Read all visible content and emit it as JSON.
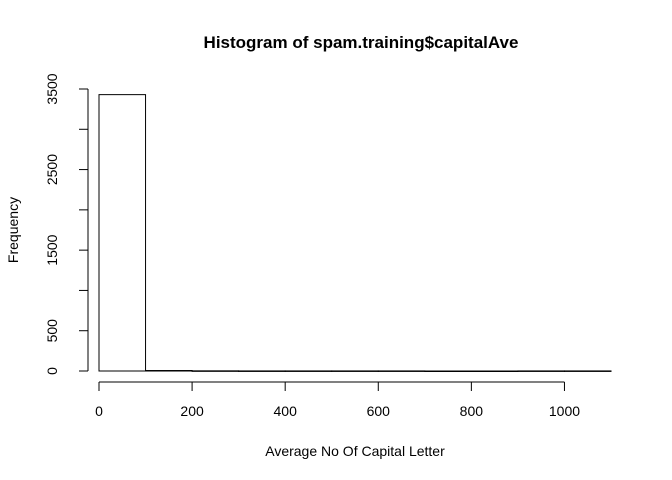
{
  "chart_data": {
    "type": "bar",
    "title": "Histogram of spam.training$capitalAve",
    "xlabel": "Average No Of Capital Letter",
    "ylabel": "Frequency",
    "bins": [
      {
        "x0": 0,
        "x1": 100,
        "count": 3430
      },
      {
        "x0": 100,
        "x1": 200,
        "count": 6
      },
      {
        "x0": 200,
        "x1": 300,
        "count": 2
      },
      {
        "x0": 300,
        "x1": 400,
        "count": 1
      },
      {
        "x0": 400,
        "x1": 500,
        "count": 1
      },
      {
        "x0": 500,
        "x1": 600,
        "count": 1
      },
      {
        "x0": 600,
        "x1": 700,
        "count": 1
      },
      {
        "x0": 700,
        "x1": 800,
        "count": 0
      },
      {
        "x0": 800,
        "x1": 900,
        "count": 0
      },
      {
        "x0": 900,
        "x1": 1000,
        "count": 1
      },
      {
        "x0": 1000,
        "x1": 1100,
        "count": 1
      }
    ],
    "xlim": [
      0,
      1100
    ],
    "ylim": [
      0,
      3500
    ],
    "xticks": [
      0,
      200,
      400,
      600,
      800,
      1000
    ],
    "yticks": [
      0,
      500,
      1000,
      1500,
      2000,
      2500,
      3000,
      3500
    ],
    "ytick_labels": [
      "0",
      "500",
      "",
      "1500",
      "",
      "2500",
      "",
      "3500"
    ],
    "grid": false
  }
}
